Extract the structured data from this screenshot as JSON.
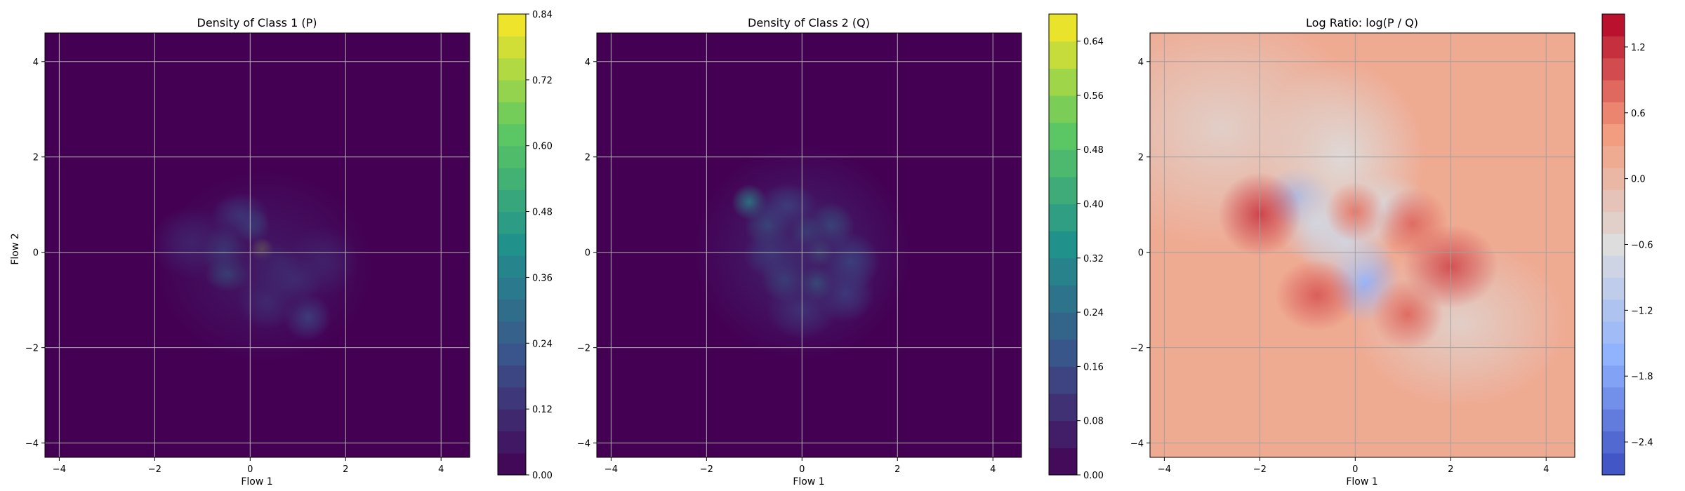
{
  "chart_data": [
    {
      "type": "heatmap",
      "title": "Density of Class 1 (P)",
      "xlabel": "Flow 1",
      "ylabel": "Flow 2",
      "xlim": [
        -4.3,
        4.6
      ],
      "ylim": [
        -4.3,
        4.6
      ],
      "xticks": [
        -4,
        -2,
        0,
        2,
        4
      ],
      "yticks": [
        -4,
        -2,
        0,
        2,
        4
      ],
      "grid": true,
      "colormap": "viridis",
      "background_color": "#440154",
      "colorbar": {
        "min": 0.0,
        "max": 0.84,
        "ticks": [
          "0.00",
          "0.12",
          "0.24",
          "0.36",
          "0.48",
          "0.60",
          "0.72",
          "0.84"
        ],
        "levels": 21
      },
      "blobs": [
        {
          "x": 0.25,
          "y": 0.05,
          "sx": 0.1,
          "sy": 0.1,
          "v": 0.75
        },
        {
          "x": 0.05,
          "y": 0.55,
          "sx": 0.15,
          "sy": 0.15,
          "v": 0.3
        },
        {
          "x": -0.45,
          "y": -0.45,
          "sx": 0.2,
          "sy": 0.15,
          "v": 0.35
        },
        {
          "x": -0.55,
          "y": 0.05,
          "sx": 0.2,
          "sy": 0.2,
          "v": 0.28
        },
        {
          "x": 0.55,
          "y": -0.35,
          "sx": 0.2,
          "sy": 0.2,
          "v": 0.25
        },
        {
          "x": 0.9,
          "y": -0.55,
          "sx": 0.25,
          "sy": 0.2,
          "v": 0.2
        },
        {
          "x": 1.2,
          "y": -1.35,
          "sx": 0.2,
          "sy": 0.2,
          "v": 0.2
        },
        {
          "x": -0.2,
          "y": 0.75,
          "sx": 0.25,
          "sy": 0.2,
          "v": 0.18
        },
        {
          "x": 0.35,
          "y": -1.0,
          "sx": 0.25,
          "sy": 0.25,
          "v": 0.16
        },
        {
          "x": -1.2,
          "y": 0.2,
          "sx": 0.35,
          "sy": 0.3,
          "v": 0.1
        },
        {
          "x": 1.5,
          "y": -0.2,
          "sx": 0.3,
          "sy": 0.3,
          "v": 0.1
        },
        {
          "x": 0.3,
          "y": -0.3,
          "sx": 0.9,
          "sy": 0.8,
          "v": 0.07
        }
      ]
    },
    {
      "type": "heatmap",
      "title": "Density of Class 2 (Q)",
      "xlabel": "Flow 1",
      "ylabel": "",
      "xlim": [
        -4.3,
        4.6
      ],
      "ylim": [
        -4.3,
        4.6
      ],
      "xticks": [
        -4,
        -2,
        0,
        2,
        4
      ],
      "yticks": [
        -4,
        -2,
        0,
        2,
        4
      ],
      "grid": true,
      "colormap": "viridis",
      "background_color": "#440154",
      "colorbar": {
        "min": 0.0,
        "max": 0.68,
        "ticks": [
          "0.00",
          "0.08",
          "0.16",
          "0.24",
          "0.32",
          "0.40",
          "0.48",
          "0.56",
          "0.64"
        ],
        "levels": 17
      },
      "blobs": [
        {
          "x": -1.1,
          "y": 1.05,
          "sx": 0.15,
          "sy": 0.15,
          "v": 0.35
        },
        {
          "x": 0.35,
          "y": 0.0,
          "sx": 0.12,
          "sy": 0.12,
          "v": 0.4
        },
        {
          "x": 0.1,
          "y": 0.4,
          "sx": 0.15,
          "sy": 0.15,
          "v": 0.3
        },
        {
          "x": 0.3,
          "y": -0.65,
          "sx": 0.15,
          "sy": 0.15,
          "v": 0.35
        },
        {
          "x": -0.7,
          "y": 0.55,
          "sx": 0.2,
          "sy": 0.2,
          "v": 0.25
        },
        {
          "x": -0.35,
          "y": -0.55,
          "sx": 0.2,
          "sy": 0.2,
          "v": 0.25
        },
        {
          "x": -0.6,
          "y": -0.05,
          "sx": 0.25,
          "sy": 0.2,
          "v": 0.2
        },
        {
          "x": 0.6,
          "y": 0.55,
          "sx": 0.2,
          "sy": 0.2,
          "v": 0.25
        },
        {
          "x": 1.0,
          "y": -0.2,
          "sx": 0.25,
          "sy": 0.25,
          "v": 0.2
        },
        {
          "x": -0.3,
          "y": 0.95,
          "sx": 0.25,
          "sy": 0.2,
          "v": 0.18
        },
        {
          "x": 0.9,
          "y": -0.85,
          "sx": 0.25,
          "sy": 0.25,
          "v": 0.15
        },
        {
          "x": 0.0,
          "y": -1.2,
          "sx": 0.3,
          "sy": 0.25,
          "v": 0.12
        },
        {
          "x": 0.0,
          "y": 0.0,
          "sx": 0.9,
          "sy": 0.9,
          "v": 0.08
        }
      ]
    },
    {
      "type": "heatmap",
      "title": "Log Ratio: log(P / Q)",
      "xlabel": "Flow 1",
      "ylabel": "",
      "xlim": [
        -4.3,
        4.6
      ],
      "ylim": [
        -4.3,
        4.6
      ],
      "xticks": [
        -4,
        -2,
        0,
        2,
        4
      ],
      "yticks": [
        -4,
        -2,
        0,
        2,
        4
      ],
      "grid": true,
      "colormap": "coolwarm",
      "background_color": "#eed0c0",
      "colorbar": {
        "min": -2.7,
        "max": 1.5,
        "ticks": [
          "-2.4",
          "-1.8",
          "-1.2",
          "-0.6",
          "0.0",
          "0.6",
          "1.2"
        ],
        "levels": 21
      },
      "background_value": 0.2,
      "blobs": [
        {
          "x": -1.2,
          "y": 1.15,
          "sx": 0.3,
          "sy": 0.25,
          "v": -2.0
        },
        {
          "x": -0.8,
          "y": 0.6,
          "sx": 0.35,
          "sy": 0.35,
          "v": -0.8
        },
        {
          "x": 0.2,
          "y": -0.6,
          "sx": 0.3,
          "sy": 0.35,
          "v": -1.6
        },
        {
          "x": -0.2,
          "y": 0.2,
          "sx": 0.4,
          "sy": 0.4,
          "v": -0.8
        },
        {
          "x": 0.6,
          "y": 0.9,
          "sx": 0.4,
          "sy": 0.3,
          "v": -0.7
        },
        {
          "x": -0.3,
          "y": 2.0,
          "sx": 0.7,
          "sy": 0.8,
          "v": -0.6
        },
        {
          "x": -2.8,
          "y": 2.6,
          "sx": 1.2,
          "sy": 1.0,
          "v": -0.4
        },
        {
          "x": 2.2,
          "y": -1.5,
          "sx": 0.9,
          "sy": 0.7,
          "v": -0.4
        },
        {
          "x": -2.0,
          "y": 0.8,
          "sx": 0.35,
          "sy": 0.35,
          "v": 1.1
        },
        {
          "x": 2.0,
          "y": -0.3,
          "sx": 0.4,
          "sy": 0.35,
          "v": 1.0
        },
        {
          "x": -0.8,
          "y": -0.9,
          "sx": 0.35,
          "sy": 0.3,
          "v": 0.9
        },
        {
          "x": 1.2,
          "y": 0.6,
          "sx": 0.3,
          "sy": 0.3,
          "v": 0.8
        },
        {
          "x": 1.1,
          "y": -1.3,
          "sx": 0.3,
          "sy": 0.3,
          "v": 0.8
        },
        {
          "x": 0.0,
          "y": 0.85,
          "sx": 0.25,
          "sy": 0.25,
          "v": 0.7
        }
      ]
    }
  ]
}
